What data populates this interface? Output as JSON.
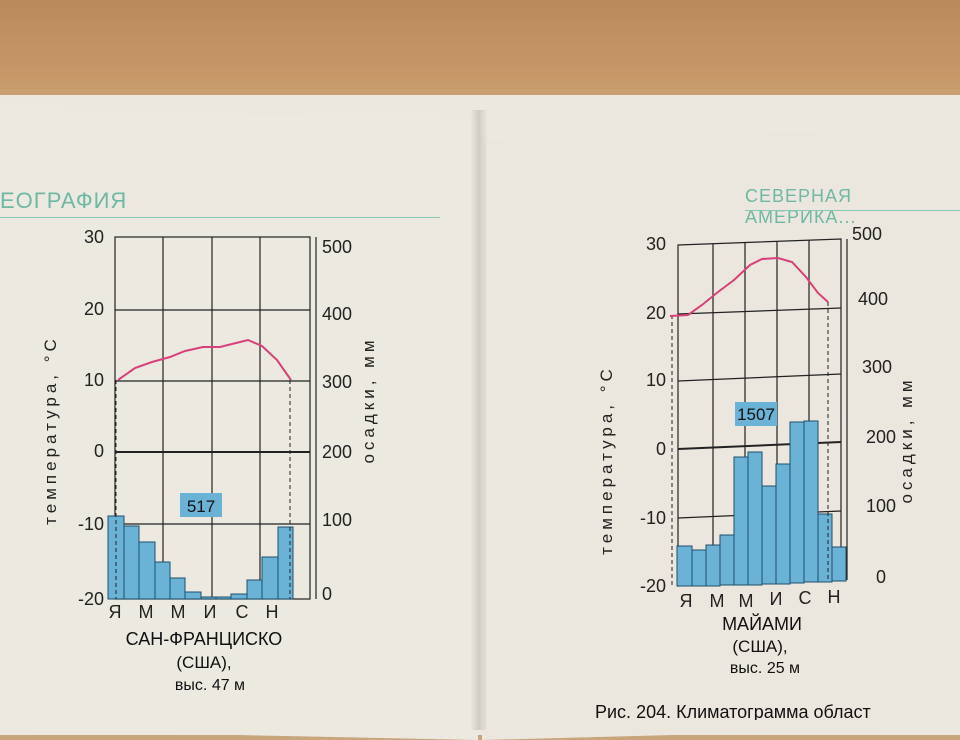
{
  "headers": {
    "left": "ЕОГРАФИЯ",
    "right": "СЕВЕРНАЯ АМЕРИКА..."
  },
  "left_chart": {
    "total_precip": "517",
    "temp_label": "температура, °С",
    "precip_label": "осадки, мм",
    "temp_ticks": [
      "30",
      "20",
      "10",
      "0",
      "-10",
      "-20"
    ],
    "precip_ticks": [
      "500",
      "400",
      "300",
      "200",
      "100",
      "0"
    ],
    "months": [
      "Я",
      "М",
      "М",
      "И",
      "С",
      "Н"
    ],
    "city": "САН-ФРАНЦИСКО",
    "country": "(США),",
    "altitude": "выс. 47 м"
  },
  "right_chart": {
    "total_precip": "1507",
    "temp_label": "температура, °С",
    "precip_label": "осадки, мм",
    "temp_ticks": [
      "30",
      "20",
      "10",
      "0",
      "-10",
      "-20"
    ],
    "precip_ticks": [
      "500",
      "400",
      "300",
      "200",
      "100",
      "0"
    ],
    "months": [
      "Я",
      "М",
      "М",
      "И",
      "С",
      "Н"
    ],
    "city": "МАЙАМИ",
    "country": "(США),",
    "altitude": "выс. 25 м"
  },
  "footer_right": "Рис. 204. Климатограмма област"
}
